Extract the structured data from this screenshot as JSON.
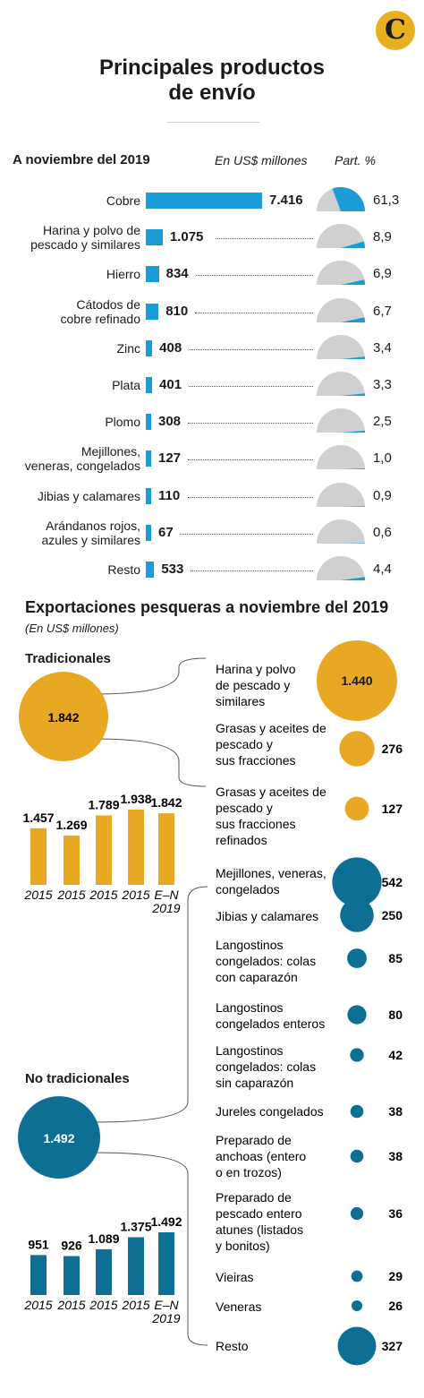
{
  "header": {
    "title_line1": "Principales productos",
    "title_line2": "de envío"
  },
  "top": {
    "date_label": "A noviembre del 2019",
    "units_label": "En US$ millones",
    "share_label": "Part. %"
  },
  "chart_data": [
    {
      "type": "bar",
      "title": "Principales productos de envío",
      "subtitle": "A noviembre del 2019",
      "ylabel": "En US$ millones",
      "categories": [
        "Cobre",
        "Harina y polvo de pescado y similares",
        "Hierro",
        "Cátodos de cobre refinado",
        "Zinc",
        "Plata",
        "Plomo",
        "Mejillones, veneras, congelados",
        "Jibias y calamares",
        "Arándanos rojos, azules y similares",
        "Resto"
      ],
      "label_lines": [
        [
          "Cobre"
        ],
        [
          "Harina y polvo de",
          "pescado y similares"
        ],
        [
          "Hierro"
        ],
        [
          "Cátodos de",
          "cobre refinado"
        ],
        [
          "Zinc"
        ],
        [
          "Plata"
        ],
        [
          "Plomo"
        ],
        [
          "Mejillones,",
          "veneras, congelados"
        ],
        [
          "Jibias y calamares"
        ],
        [
          "Arándanos rojos,",
          "azules y similares"
        ],
        [
          "Resto"
        ]
      ],
      "values": [
        7416,
        1075,
        834,
        810,
        408,
        401,
        308,
        127,
        110,
        67,
        533
      ],
      "value_labels": [
        "7.416",
        "1.075",
        "834",
        "810",
        "408",
        "401",
        "308",
        "127",
        "110",
        "67",
        "533"
      ],
      "share_pct": [
        61.3,
        8.9,
        6.9,
        6.7,
        3.4,
        3.3,
        2.5,
        1.0,
        0.9,
        0.6,
        4.4
      ],
      "share_labels": [
        "61,3",
        "8,9",
        "6,9",
        "6,7",
        "3,4",
        "3,3",
        "2,5",
        "1,0",
        "0,9",
        "0,6",
        "4,4"
      ],
      "color": "#1a9cd8",
      "gauge_color": "#d0d0d0"
    },
    {
      "type": "bar",
      "title": "Tradicionales",
      "total_label": "1.842",
      "categories": [
        "2015",
        "2015",
        "2015",
        "2015",
        "E-N 2019"
      ],
      "category_lines": [
        [
          "2015"
        ],
        [
          "2015"
        ],
        [
          "2015"
        ],
        [
          "2015"
        ],
        [
          "E–N",
          "2019"
        ]
      ],
      "values": [
        1457,
        1269,
        1789,
        1938,
        1842
      ],
      "value_labels": [
        "1.457",
        "1.269",
        "1.789",
        "1.938",
        "1.842"
      ],
      "color": "#e8a824"
    },
    {
      "type": "bar",
      "title": "No tradicionales",
      "total_label": "1.492",
      "categories": [
        "2015",
        "2015",
        "2015",
        "2015",
        "E-N 2019"
      ],
      "category_lines": [
        [
          "2015"
        ],
        [
          "2015"
        ],
        [
          "2015"
        ],
        [
          "2015"
        ],
        [
          "E–N",
          "2019"
        ]
      ],
      "values": [
        951,
        926,
        1089,
        1375,
        1492
      ],
      "value_labels": [
        "951",
        "926",
        "1.089",
        "1.375",
        "1.492"
      ],
      "color": "#0e6f94"
    },
    {
      "type": "scatter",
      "title": "Exportaciones pesqueras a noviembre del 2019",
      "subtitle": "(En US$ millones)",
      "groups": [
        {
          "name": "Tradicionales",
          "color": "#e8a824",
          "items": [
            {
              "lines": [
                "Harina y polvo",
                "de pescado y",
                "similares"
              ],
              "value": 1440,
              "label": "1.440"
            },
            {
              "lines": [
                "Grasas y aceites de",
                "pescado y",
                "sus fracciones"
              ],
              "value": 276,
              "label": "276"
            },
            {
              "lines": [
                "Grasas y aceites de",
                "pescado y",
                "sus fracciones",
                "refinados"
              ],
              "value": 127,
              "label": "127"
            }
          ]
        },
        {
          "name": "No tradicionales",
          "color": "#0e6f94",
          "items": [
            {
              "lines": [
                "Mejillones, veneras,",
                "congelados"
              ],
              "value": 542,
              "label": "542"
            },
            {
              "lines": [
                "Jibias y calamares"
              ],
              "value": 250,
              "label": "250"
            },
            {
              "lines": [
                "Langostinos",
                "congelados: colas",
                "con caparazón"
              ],
              "value": 85,
              "label": "85"
            },
            {
              "lines": [
                "Langostinos",
                "congelados enteros"
              ],
              "value": 80,
              "label": "80"
            },
            {
              "lines": [
                "Langostinos",
                "congelados: colas",
                "sin caparazón"
              ],
              "value": 42,
              "label": "42"
            },
            {
              "lines": [
                "Jureles congelados"
              ],
              "value": 38,
              "label": "38"
            },
            {
              "lines": [
                "Preparado de",
                "anchoas (entero",
                "o en trozos)"
              ],
              "value": 38,
              "label": "38"
            },
            {
              "lines": [
                "Preparado de",
                "pescado entero",
                "atunes (listados",
                "y bonitos)"
              ],
              "value": 36,
              "label": "36"
            },
            {
              "lines": [
                "Vieiras"
              ],
              "value": 29,
              "label": "29"
            },
            {
              "lines": [
                "Veneras"
              ],
              "value": 26,
              "label": "26"
            },
            {
              "lines": [
                "Resto"
              ],
              "value": 327,
              "label": "327"
            }
          ]
        }
      ]
    }
  ]
}
